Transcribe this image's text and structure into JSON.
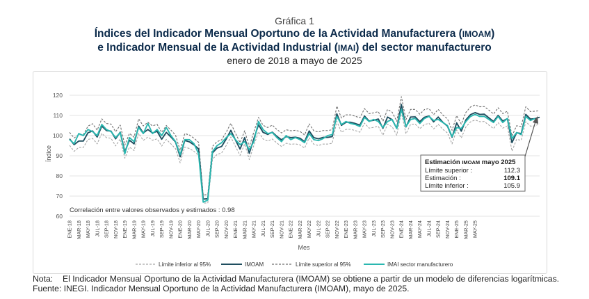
{
  "header": {
    "graph_number": "Gráfica 1",
    "title_line1_a": "Índices del Indicador Mensual Oportuno de la Actividad Manufacturera (",
    "title_line1_sc": "IMOAM",
    "title_line1_b": ")",
    "title_line2_a": "e Indicador Mensual de la Actividad Industrial (",
    "title_line2_sc": "IMAI",
    "title_line2_b": ") del sector manufacturero",
    "subtitle": "enero de 2018 a mayo de 2025"
  },
  "footer": {
    "note_label": "Nota:",
    "note_a": "El Indicador Mensual Oportuno de la Actividad Manufacturera (",
    "note_sc": "IMOAM",
    "note_b": ") se obtiene a partir de un modelo de diferencias logarítmicas.",
    "source_label": "Fuente:",
    "source_sc1": "INEGI",
    "source_a": ". Indicador Mensual Oportuno de la Actividad Manufacturera (",
    "source_sc2": "IMOAM",
    "source_b": "), mayo de 2025."
  },
  "colors": {
    "imoam": "#1f4e5f",
    "imai": "#2ab7b0",
    "limits": "#a6a6a6",
    "grid": "#e3e3e3"
  },
  "chart_data": {
    "type": "line",
    "xlabel": "Mes",
    "ylabel": "Índice",
    "ylim": [
      60,
      120
    ],
    "yticks": [
      60,
      70,
      80,
      90,
      100,
      110,
      120
    ],
    "grid": true,
    "legend_position": "bottom",
    "tick_labels": [
      "ENE-18",
      "MAR-18",
      "MAY-18",
      "JUL-18",
      "SEP-18",
      "NOV-18",
      "ENE-19",
      "MAR-19",
      "MAY-19",
      "JUL-19",
      "SEP-19",
      "NOV-19",
      "ENE-20",
      "MAR-20",
      "MAY-20",
      "JUL-20",
      "SEP-20",
      "NOV-20",
      "ENE-21",
      "MAR-21",
      "MAY-21",
      "JUL-21",
      "SEP-21",
      "NOV-21",
      "ENE-22",
      "MAR-22",
      "MAY-22",
      "JUL-22",
      "SEP-22",
      "NOV-22",
      "ENE-23",
      "MAR-23",
      "MAY-23",
      "JUL-23",
      "SEP-23",
      "NOV-23",
      "ENE-24",
      "MAR-24",
      "MAY-24",
      "JUL-24",
      "SEP-24",
      "NOV-24",
      "ENE-25",
      "MAR-25",
      "MAY-25"
    ],
    "series": [
      {
        "name": "Límite inferior al 95%",
        "style": "dashed",
        "color": "#a6a6a6",
        "values": [
          95.2,
          92.2,
          94.1,
          94.1,
          98.1,
          98.6,
          95.9,
          101.1,
          99.0,
          98.7,
          94.9,
          98.3,
          88.8,
          94.3,
          92.6,
          101.1,
          97.6,
          99.3,
          97.7,
          98.4,
          94.8,
          98.1,
          95.9,
          93.5,
          86.5,
          94.3,
          93.6,
          92.2,
          90.2,
          66.5,
          66.6,
          88.3,
          90.6,
          91.4,
          95.1,
          99.3,
          94.6,
          90.2,
          95.8,
          88.1,
          95.2,
          101.9,
          98.3,
          97.3,
          98.3,
          96.3,
          94.6,
          96.2,
          95.7,
          95.9,
          95.4,
          93.8,
          98.9,
          95.7,
          95.1,
          95.8,
          95.8,
          96.2,
          107.1,
          101.6,
          103.1,
          103.1,
          102.5,
          101.7,
          106.2,
          103.7,
          104.1,
          104.6,
          100.2,
          105.6,
          104.4,
          100.2,
          111.6,
          100.9,
          105.6,
          105.7,
          103.4,
          105.5,
          106.1,
          103.3,
          105.6,
          103.1,
          101.3,
          95.9,
          102.8,
          98.8,
          104.3,
          106.8,
          107.8,
          106.9,
          107.0,
          105.2,
          103.5,
          106.4,
          103.7,
          104.8,
          92.3,
          98.1,
          97.7,
          106.9,
          104.7,
          104.8,
          105.9
        ]
      },
      {
        "name": "IMOAM",
        "style": "solid",
        "color": "#1f4e5f",
        "values": [
          98.4,
          95.5,
          97.3,
          97.3,
          101.4,
          102.3,
          99.3,
          104.7,
          102.5,
          102.2,
          98.4,
          101.7,
          92.0,
          97.7,
          95.9,
          104.7,
          101.3,
          103.0,
          101.3,
          102.1,
          98.2,
          101.6,
          99.3,
          96.8,
          89.5,
          97.6,
          96.9,
          95.4,
          93.4,
          68.5,
          68.7,
          91.4,
          93.8,
          94.6,
          98.3,
          102.6,
          97.8,
          93.3,
          99.0,
          91.2,
          98.5,
          105.4,
          101.6,
          100.6,
          101.7,
          99.6,
          97.9,
          99.5,
          99.0,
          99.2,
          98.7,
          97.0,
          102.3,
          99.0,
          98.4,
          99.1,
          99.1,
          99.5,
          110.8,
          105.1,
          106.6,
          106.6,
          106.0,
          105.2,
          109.7,
          107.2,
          107.6,
          108.2,
          103.6,
          109.2,
          107.9,
          103.6,
          115.4,
          104.3,
          109.2,
          109.3,
          106.9,
          109.1,
          109.7,
          106.8,
          109.2,
          106.6,
          104.7,
          99.2,
          106.3,
          102.2,
          107.8,
          110.4,
          111.4,
          110.5,
          110.6,
          108.8,
          107.0,
          110.0,
          107.2,
          108.4,
          96.5,
          101.4,
          101.0,
          110.5,
          108.2,
          108.4,
          109.1
        ]
      },
      {
        "name": "Límite superior al 95%",
        "style": "dashed",
        "color": "#6f6f6f",
        "values": [
          101.6,
          98.8,
          100.5,
          100.5,
          104.7,
          105.9,
          102.7,
          108.3,
          106.0,
          105.7,
          101.9,
          105.2,
          95.3,
          101.1,
          99.2,
          108.3,
          104.8,
          106.6,
          104.8,
          105.6,
          101.6,
          105.0,
          102.7,
          100.2,
          92.6,
          101.0,
          100.3,
          98.7,
          96.7,
          70.5,
          70.8,
          94.6,
          97.0,
          97.9,
          101.7,
          106.1,
          101.2,
          96.5,
          102.4,
          94.4,
          101.9,
          109.0,
          105.1,
          104.0,
          105.2,
          103.0,
          101.3,
          102.9,
          102.4,
          102.6,
          102.1,
          100.3,
          105.8,
          102.4,
          101.8,
          102.5,
          102.5,
          102.9,
          114.6,
          108.7,
          110.3,
          110.3,
          109.6,
          108.8,
          113.4,
          110.9,
          111.3,
          111.9,
          107.1,
          113.0,
          111.6,
          107.1,
          119.3,
          107.9,
          113.0,
          113.0,
          110.6,
          112.9,
          113.4,
          110.4,
          113.0,
          110.2,
          108.3,
          102.6,
          109.9,
          105.7,
          111.5,
          114.2,
          115.2,
          114.3,
          114.4,
          112.6,
          110.7,
          113.8,
          110.9,
          112.1,
          99.8,
          104.9,
          104.5,
          114.3,
          111.9,
          112.1,
          112.3
        ]
      },
      {
        "name": "IMAI sector manufacturero",
        "style": "solid",
        "color": "#2ab7b0",
        "values": [
          98.0,
          96.0,
          101.0,
          100.0,
          103.0,
          102.0,
          100.0,
          105.5,
          103.0,
          102.0,
          99.0,
          101.5,
          91.0,
          99.0,
          97.0,
          104.0,
          101.0,
          106.0,
          101.0,
          103.0,
          100.0,
          104.0,
          100.0,
          97.0,
          90.5,
          98.0,
          98.0,
          96.0,
          91.0,
          67.0,
          68.0,
          92.0,
          95.0,
          96.5,
          99.0,
          101.0,
          98.0,
          95.5,
          97.0,
          93.0,
          97.0,
          107.0,
          103.0,
          101.0,
          101.5,
          99.0,
          97.0,
          100.0,
          98.0,
          99.0,
          98.0,
          96.5,
          101.0,
          98.0,
          97.5,
          98.5,
          100.0,
          100.5,
          109.5,
          105.5,
          107.0,
          106.0,
          105.5,
          104.5,
          109.0,
          107.0,
          108.0,
          107.0,
          104.0,
          107.0,
          108.0,
          103.5,
          113.0,
          104.5,
          108.0,
          108.5,
          106.0,
          108.5,
          109.5,
          107.5,
          108.0,
          106.5,
          105.0,
          99.5,
          104.0,
          103.5,
          107.0,
          109.5,
          110.5,
          109.5,
          109.5,
          108.0,
          106.5,
          109.5,
          106.5,
          108.5,
          98.5,
          101.5,
          100.5,
          109.5,
          107.5,
          108.5
        ]
      }
    ],
    "annotations": {
      "correlation_text": "Correlación entre valores observados y estimados :  0.98",
      "estimate_box": {
        "title_a": "Estimación ",
        "title_sc": "IMOAM",
        "title_b": " mayo 2025",
        "rows": [
          {
            "label": "Límite superior :",
            "value": "112.3"
          },
          {
            "label": "Estimación :",
            "value": "109.1"
          },
          {
            "label": "Límite inferior :",
            "value": "105.9"
          }
        ]
      }
    }
  }
}
